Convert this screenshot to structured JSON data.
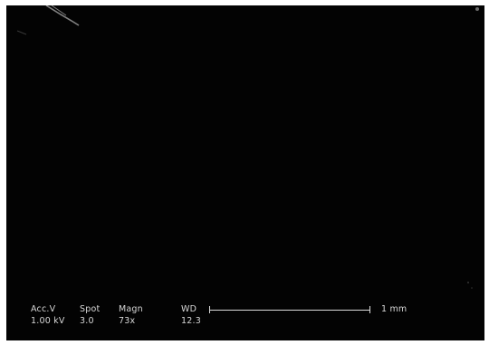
{
  "micrograph": {
    "accv_header": "Acc.V",
    "spot_header": "Spot",
    "magn_header": "Magn",
    "wd_header": "WD",
    "accv_value": "1.00 kV",
    "spot_value": "3.0",
    "magn_value": "73x",
    "wd_value": "12.3",
    "scale_label": "1 mm"
  },
  "colors": {
    "background": "#030303",
    "text": "#d8d8d8",
    "border": "#ffffff"
  }
}
